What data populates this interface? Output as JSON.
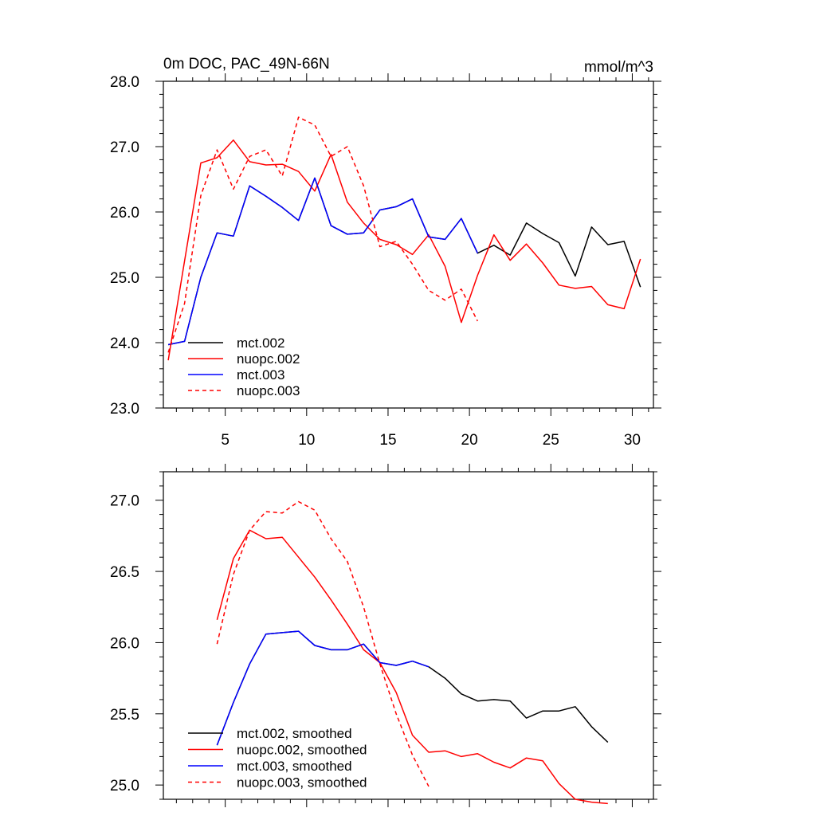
{
  "chart_data": [
    {
      "type": "line",
      "title": "0m DOC, PAC_49N-66N",
      "units": "mmol/m^3",
      "xlabel": "",
      "ylabel": "",
      "xlim": [
        1.2,
        31.3
      ],
      "ylim": [
        23.0,
        28.0
      ],
      "xticks": [
        5,
        10,
        15,
        20,
        25,
        30
      ],
      "xtick_labels": [
        "5",
        "10",
        "15",
        "20",
        "25",
        "30"
      ],
      "yticks": [
        23.0,
        24.0,
        25.0,
        26.0,
        27.0,
        28.0
      ],
      "ytick_labels": [
        "23.0",
        "24.0",
        "25.0",
        "26.0",
        "27.0",
        "28.0"
      ],
      "grid": false,
      "legend_position": "bottom-left",
      "series": [
        {
          "name": "mct.002",
          "color": "#000000",
          "dash": "solid",
          "x": [
            1.5,
            2.5,
            3.5,
            4.5,
            5.5,
            6.5,
            7.5,
            8.5,
            9.5,
            10.5,
            11.5,
            12.5,
            13.5,
            14.5,
            15.5,
            16.5,
            17.5,
            18.5,
            19.5,
            20.5,
            21.5,
            22.5,
            23.5,
            24.5,
            25.5,
            26.5,
            27.5,
            28.5,
            29.5,
            30.5
          ],
          "y": [
            23.97,
            24.02,
            25.0,
            25.68,
            25.63,
            26.4,
            26.24,
            26.07,
            25.87,
            26.52,
            25.79,
            25.66,
            25.68,
            26.03,
            26.08,
            26.2,
            25.62,
            25.58,
            25.9,
            25.37,
            25.49,
            25.34,
            25.83,
            25.67,
            25.53,
            25.02,
            25.77,
            25.5,
            25.55,
            24.85
          ]
        },
        {
          "name": "nuopc.002",
          "color": "#ff0000",
          "dash": "solid",
          "x": [
            1.5,
            2.5,
            3.5,
            4.5,
            5.5,
            6.5,
            7.5,
            8.5,
            9.5,
            10.5,
            11.5,
            12.5,
            13.5,
            14.5,
            15.5,
            16.5,
            17.5,
            18.5,
            19.5,
            20.5,
            21.5,
            22.5,
            23.5,
            24.5,
            25.5,
            26.5,
            27.5,
            28.5,
            29.5,
            30.5
          ],
          "y": [
            23.73,
            25.25,
            26.75,
            26.83,
            27.1,
            26.77,
            26.72,
            26.73,
            26.62,
            26.32,
            26.88,
            26.15,
            25.83,
            25.58,
            25.5,
            25.35,
            25.65,
            25.17,
            24.31,
            25.03,
            25.65,
            25.26,
            25.51,
            25.22,
            24.88,
            24.83,
            24.86,
            24.58,
            24.52,
            25.28
          ]
        },
        {
          "name": "mct.003",
          "color": "#0000ff",
          "dash": "solid",
          "x": [
            1.5,
            2.5,
            3.5,
            4.5,
            5.5,
            6.5,
            7.5,
            8.5,
            9.5,
            10.5,
            11.5,
            12.5,
            13.5,
            14.5,
            15.5,
            16.5,
            17.5,
            18.5,
            19.5,
            20.5
          ],
          "y": [
            23.97,
            24.02,
            25.0,
            25.68,
            25.63,
            26.4,
            26.24,
            26.07,
            25.87,
            26.52,
            25.79,
            25.66,
            25.68,
            26.03,
            26.08,
            26.2,
            25.62,
            25.58,
            25.9,
            25.37
          ]
        },
        {
          "name": "nuopc.003",
          "color": "#ff0000",
          "dash": "dashed",
          "x": [
            1.5,
            2.5,
            3.5,
            4.5,
            5.5,
            6.5,
            7.5,
            8.5,
            9.5,
            10.5,
            11.5,
            12.5,
            13.5,
            14.5,
            15.5,
            16.5,
            17.5,
            18.5,
            19.5,
            20.5
          ],
          "y": [
            23.85,
            24.6,
            26.25,
            26.95,
            26.35,
            26.85,
            26.95,
            26.55,
            27.45,
            27.33,
            26.85,
            27.0,
            26.4,
            25.47,
            25.55,
            25.2,
            24.8,
            24.65,
            24.82,
            24.33
          ]
        }
      ]
    },
    {
      "type": "line",
      "title": "",
      "xlabel": "",
      "ylabel": "",
      "xlim": [
        1.2,
        31.3
      ],
      "ylim": [
        24.9,
        27.2
      ],
      "xticks": [
        5,
        10,
        15,
        20,
        25,
        30
      ],
      "xtick_labels": [
        "",
        "",
        "",
        "",
        "",
        ""
      ],
      "yticks": [
        25.0,
        25.5,
        26.0,
        26.5,
        27.0
      ],
      "ytick_labels": [
        "25.0",
        "25.5",
        "26.0",
        "26.5",
        "27.0"
      ],
      "grid": false,
      "legend_position": "bottom-left",
      "series": [
        {
          "name": "mct.002, smoothed",
          "color": "#000000",
          "dash": "solid",
          "x": [
            4.5,
            5.5,
            6.5,
            7.5,
            8.5,
            9.5,
            10.5,
            11.5,
            12.5,
            13.5,
            14.5,
            15.5,
            16.5,
            17.5,
            18.5,
            19.5,
            20.5,
            21.5,
            22.5,
            23.5,
            24.5,
            25.5,
            26.5,
            27.5,
            28.5
          ],
          "y": [
            25.28,
            25.58,
            25.85,
            26.06,
            26.07,
            26.08,
            25.98,
            25.95,
            25.95,
            25.99,
            25.86,
            25.84,
            25.87,
            25.83,
            25.75,
            25.64,
            25.59,
            25.6,
            25.59,
            25.47,
            25.52,
            25.52,
            25.55,
            25.41,
            25.3
          ]
        },
        {
          "name": "nuopc.002, smoothed",
          "color": "#ff0000",
          "dash": "solid",
          "x": [
            4.5,
            5.5,
            6.5,
            7.5,
            8.5,
            9.5,
            10.5,
            11.5,
            12.5,
            13.5,
            14.5,
            15.5,
            16.5,
            17.5,
            18.5,
            19.5,
            20.5,
            21.5,
            22.5,
            23.5,
            24.5,
            25.5,
            26.5,
            27.5,
            28.5
          ],
          "y": [
            26.16,
            26.59,
            26.79,
            26.73,
            26.74,
            26.6,
            26.46,
            26.3,
            26.13,
            25.95,
            25.86,
            25.65,
            25.35,
            25.23,
            25.24,
            25.2,
            25.22,
            25.16,
            25.12,
            25.19,
            25.17,
            25.01,
            24.9,
            24.88,
            24.87
          ]
        },
        {
          "name": "mct.003, smoothed",
          "color": "#0000ff",
          "dash": "solid",
          "x": [
            4.5,
            5.5,
            6.5,
            7.5,
            8.5,
            9.5,
            10.5,
            11.5,
            12.5,
            13.5,
            14.5,
            15.5,
            16.5,
            17.5
          ],
          "y": [
            25.28,
            25.58,
            25.85,
            26.06,
            26.07,
            26.08,
            25.98,
            25.95,
            25.95,
            25.99,
            25.86,
            25.84,
            25.87,
            25.83
          ]
        },
        {
          "name": "nuopc.003, smoothed",
          "color": "#ff0000",
          "dash": "dashed",
          "x": [
            4.5,
            5.5,
            6.5,
            7.5,
            8.5,
            9.5,
            10.5,
            11.5,
            12.5,
            13.5,
            14.5,
            15.5,
            16.5,
            17.5
          ],
          "y": [
            25.99,
            26.48,
            26.79,
            26.92,
            26.91,
            26.99,
            26.93,
            26.73,
            26.57,
            26.25,
            25.85,
            25.5,
            25.21,
            24.99
          ]
        }
      ]
    }
  ]
}
